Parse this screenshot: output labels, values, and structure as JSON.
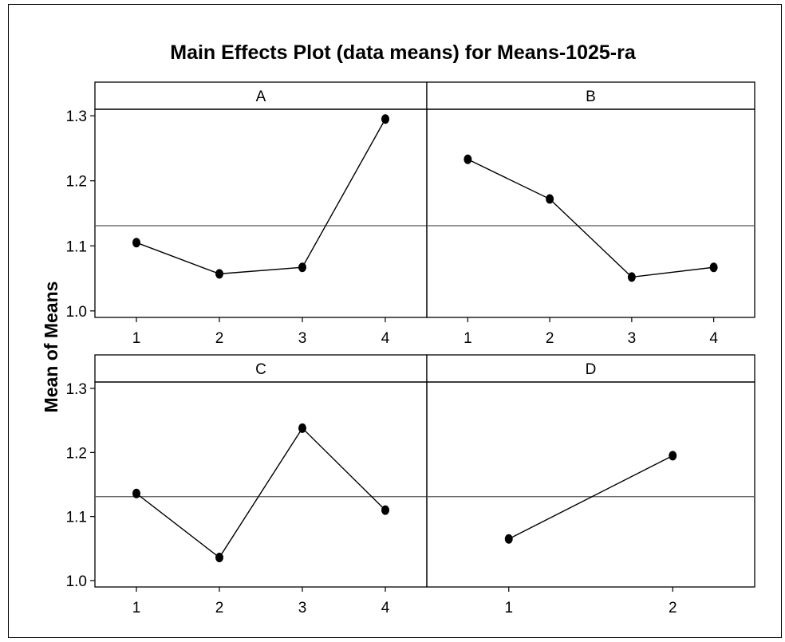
{
  "chart_data": {
    "type": "line",
    "title": "Main Effects Plot (data means) for Means-1025-ra",
    "ylabel": "Mean of Means",
    "ylim": [
      0.99,
      1.31
    ],
    "yticks": [
      "1.0",
      "1.1",
      "1.2",
      "1.3"
    ],
    "reference_line": 1.131,
    "panels": [
      {
        "name": "A",
        "categories": [
          "1",
          "2",
          "3",
          "4"
        ],
        "values": [
          1.105,
          1.057,
          1.067,
          1.295
        ]
      },
      {
        "name": "B",
        "categories": [
          "1",
          "2",
          "3",
          "4"
        ],
        "values": [
          1.233,
          1.172,
          1.052,
          1.067
        ]
      },
      {
        "name": "C",
        "categories": [
          "1",
          "2",
          "3",
          "4"
        ],
        "values": [
          1.136,
          1.036,
          1.238,
          1.11
        ]
      },
      {
        "name": "D",
        "categories": [
          "1",
          "2"
        ],
        "values": [
          1.065,
          1.195
        ]
      }
    ]
  }
}
